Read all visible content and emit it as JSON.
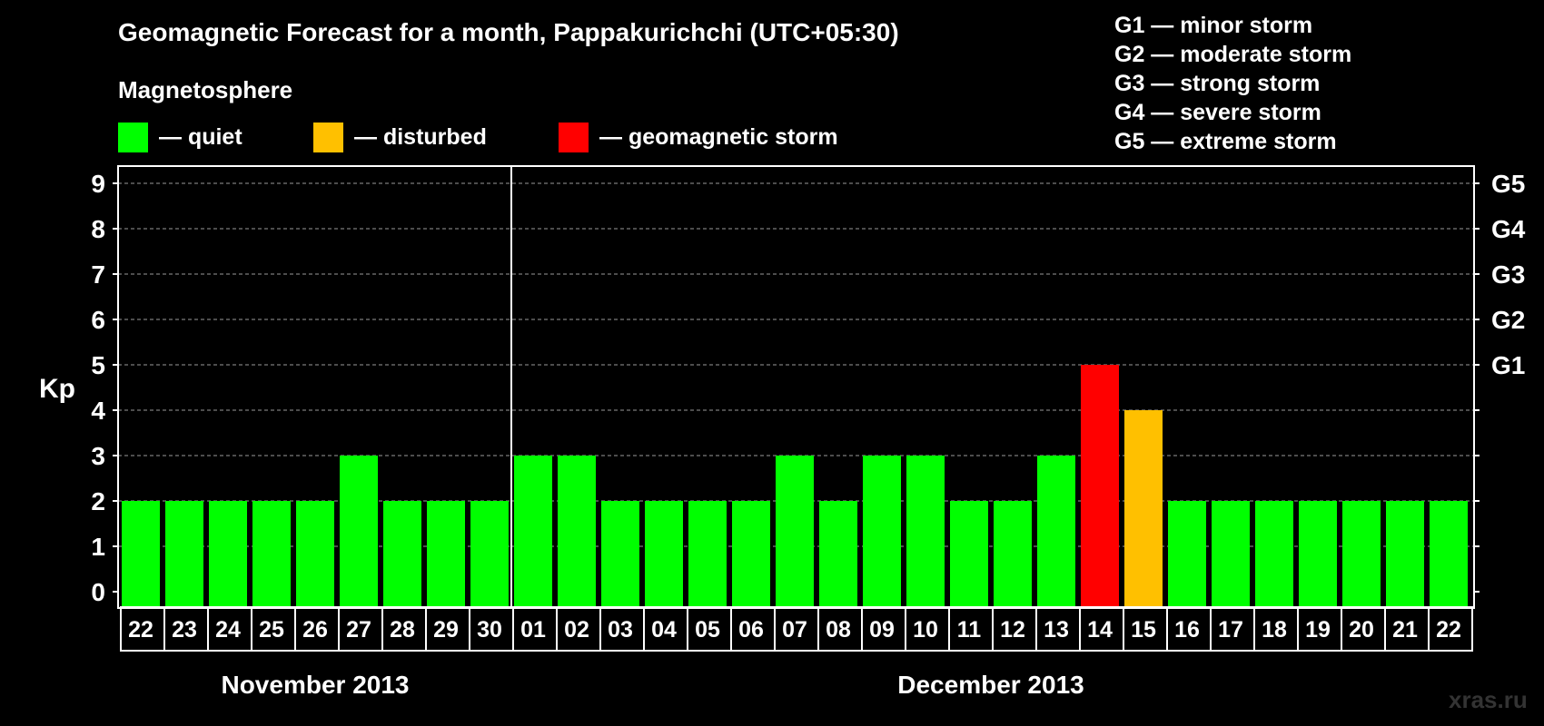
{
  "header": {
    "title": "Geomagnetic Forecast for a month, Pappakurichchi (UTC+05:30)",
    "subtitle": "Magnetosphere"
  },
  "legend": [
    {
      "label": "— quiet",
      "color": "#00ff00"
    },
    {
      "label": "— disturbed",
      "color": "#ffc000"
    },
    {
      "label": "— geomagnetic storm",
      "color": "#ff0000"
    }
  ],
  "storm_levels": [
    "G1 — minor storm",
    "G2 — moderate storm",
    "G3 — strong storm",
    "G4 — severe storm",
    "G5 — extreme storm"
  ],
  "watermark": "xras.ru",
  "chart_data": {
    "type": "bar",
    "title": "Geomagnetic Forecast for a month, Pappakurichchi (UTC+05:30)",
    "ylabel": "Kp",
    "ylim": [
      0,
      9
    ],
    "yticks": [
      0,
      1,
      2,
      3,
      4,
      5,
      6,
      7,
      8,
      9
    ],
    "right_axis_labels": [
      {
        "kp": 5,
        "label": "G1"
      },
      {
        "kp": 6,
        "label": "G2"
      },
      {
        "kp": 7,
        "label": "G3"
      },
      {
        "kp": 8,
        "label": "G4"
      },
      {
        "kp": 9,
        "label": "G5"
      }
    ],
    "grid": true,
    "categories": [
      "22",
      "23",
      "24",
      "25",
      "26",
      "27",
      "28",
      "29",
      "30",
      "01",
      "02",
      "03",
      "04",
      "05",
      "06",
      "07",
      "08",
      "09",
      "10",
      "11",
      "12",
      "13",
      "14",
      "15",
      "16",
      "17",
      "18",
      "19",
      "20",
      "21",
      "22"
    ],
    "values": [
      2,
      2,
      2,
      2,
      2,
      3,
      2,
      2,
      2,
      3,
      3,
      2,
      2,
      2,
      2,
      3,
      2,
      3,
      3,
      2,
      2,
      3,
      5,
      4,
      2,
      2,
      2,
      2,
      2,
      2,
      2
    ],
    "status": [
      "quiet",
      "quiet",
      "quiet",
      "quiet",
      "quiet",
      "quiet",
      "quiet",
      "quiet",
      "quiet",
      "quiet",
      "quiet",
      "quiet",
      "quiet",
      "quiet",
      "quiet",
      "quiet",
      "quiet",
      "quiet",
      "quiet",
      "quiet",
      "quiet",
      "quiet",
      "storm",
      "disturbed",
      "quiet",
      "quiet",
      "quiet",
      "quiet",
      "quiet",
      "quiet",
      "quiet"
    ],
    "status_colors": {
      "quiet": "#00ff00",
      "disturbed": "#ffc000",
      "storm": "#ff0000"
    },
    "months": [
      {
        "label": "November 2013",
        "start_index": 0,
        "end_index": 8
      },
      {
        "label": "December 2013",
        "start_index": 9,
        "end_index": 30
      }
    ]
  }
}
